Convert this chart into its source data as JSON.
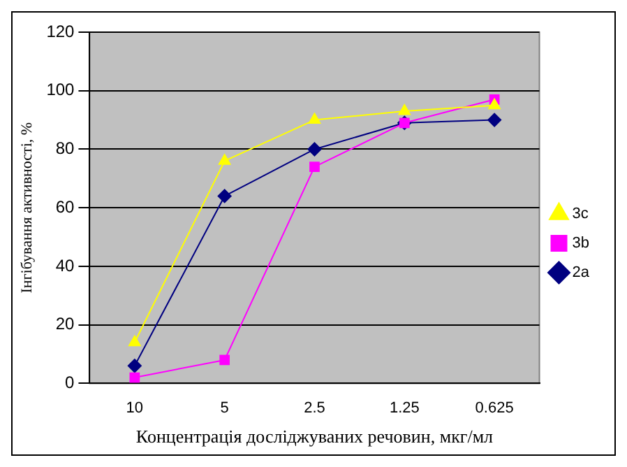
{
  "chart_data": {
    "type": "line",
    "xlabel": "Концентрація досліджуваних речовин, мкг/мл",
    "ylabel": "Інгібування активності, %",
    "categories": [
      "10",
      "5",
      "2.5",
      "1.25",
      "0.625"
    ],
    "series": [
      {
        "name": "2a",
        "color": "#000080",
        "marker": "diamond",
        "values": [
          6,
          64,
          80,
          89,
          90
        ]
      },
      {
        "name": "3b",
        "color": "#ff00ff",
        "marker": "square",
        "values": [
          2,
          8,
          74,
          89,
          97
        ]
      },
      {
        "name": "3c",
        "color": "#ffff00",
        "marker": "triangle",
        "values": [
          14,
          76,
          90,
          93,
          95
        ]
      }
    ],
    "ylim": [
      0,
      120
    ],
    "yticks": [
      0,
      20,
      40,
      60,
      80,
      100,
      120
    ],
    "grid": "y",
    "legend": "right"
  }
}
